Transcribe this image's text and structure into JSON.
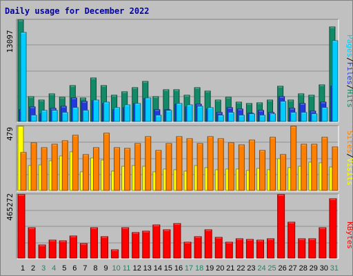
{
  "title": "Daily usage for December 2022",
  "colors": {
    "hits": "#138a67",
    "files": "#2339e0",
    "pages": "#00ccff",
    "visits": "#ffff00",
    "sites": "#ff8000",
    "kbytes": "#ff0000",
    "weekend_day_label": "#148a68",
    "weekday_label": "#000000"
  },
  "chart_data": [
    {
      "type": "bar",
      "panel": "hits-files-pages",
      "ymax_label": "13097",
      "ylim": [
        0,
        13097
      ],
      "grid": true,
      "right_labels": [
        "Pages",
        "Files",
        "Hits"
      ],
      "categories": [
        "1",
        "2",
        "3",
        "4",
        "5",
        "6",
        "7",
        "8",
        "9",
        "10",
        "11",
        "12",
        "13",
        "14",
        "15",
        "16",
        "17",
        "18",
        "19",
        "20",
        "21",
        "22",
        "23",
        "24",
        "25",
        "26",
        "27",
        "28",
        "29",
        "30",
        "31"
      ],
      "weekend_days": [
        "3",
        "4",
        "10",
        "11",
        "17",
        "18",
        "24",
        "25",
        "31"
      ],
      "series": [
        {
          "name": "Hits",
          "values": [
            13097,
            3200,
            2800,
            3600,
            3100,
            4600,
            3000,
            5600,
            4600,
            3400,
            3800,
            4400,
            5200,
            3200,
            4100,
            4100,
            3400,
            4400,
            3900,
            2800,
            3100,
            2500,
            2300,
            2400,
            2800,
            4500,
            2800,
            3600,
            3400,
            4700,
            12200
          ]
        },
        {
          "name": "Files",
          "values": [
            1500,
            1900,
            1000,
            1700,
            2000,
            3000,
            2600,
            2700,
            2300,
            1500,
            1800,
            2300,
            2900,
            1500,
            1500,
            2200,
            1900,
            2200,
            1600,
            1200,
            1800,
            1600,
            1100,
            1400,
            1200,
            3200,
            1700,
            2300,
            1300,
            2500,
            4500
          ]
        },
        {
          "name": "Pages",
          "values": [
            11500,
            800,
            1400,
            1400,
            1200,
            1800,
            1400,
            2800,
            2500,
            1800,
            2100,
            2300,
            3000,
            800,
            1400,
            2300,
            2100,
            2000,
            1800,
            800,
            1200,
            800,
            1000,
            800,
            1000,
            2600,
            1200,
            1200,
            1000,
            1800,
            10400
          ]
        }
      ]
    },
    {
      "type": "bar",
      "panel": "visits-sites",
      "ymax_label": "479",
      "ylim": [
        0,
        479
      ],
      "grid": true,
      "right_labels": [
        "Sites",
        "Visits"
      ],
      "categories": [
        "1",
        "2",
        "3",
        "4",
        "5",
        "6",
        "7",
        "8",
        "9",
        "10",
        "11",
        "12",
        "13",
        "14",
        "15",
        "16",
        "17",
        "18",
        "19",
        "20",
        "21",
        "22",
        "23",
        "24",
        "25",
        "26",
        "27",
        "28",
        "29",
        "30",
        "31"
      ],
      "series": [
        {
          "name": "Visits",
          "values": [
            479,
            185,
            192,
            222,
            260,
            288,
            137,
            242,
            225,
            144,
            180,
            187,
            181,
            141,
            158,
            155,
            142,
            187,
            171,
            154,
            159,
            159,
            149,
            165,
            157,
            237,
            171,
            180,
            212,
            208,
            174
          ]
        },
        {
          "name": "Sites",
          "values": [
            285,
            356,
            319,
            344,
            373,
            410,
            268,
            320,
            430,
            319,
            313,
            348,
            400,
            300,
            350,
            400,
            384,
            348,
            404,
            384,
            354,
            341,
            374,
            301,
            396,
            268,
            479,
            344,
            344,
            399,
            327
          ]
        }
      ]
    },
    {
      "type": "bar",
      "panel": "kbytes",
      "ymax_label": "465272",
      "ylim": [
        0,
        465272
      ],
      "grid": true,
      "right_labels": [
        "KBytes"
      ],
      "categories": [
        "1",
        "2",
        "3",
        "4",
        "5",
        "6",
        "7",
        "8",
        "9",
        "10",
        "11",
        "12",
        "13",
        "14",
        "15",
        "16",
        "17",
        "18",
        "19",
        "20",
        "21",
        "22",
        "23",
        "24",
        "25",
        "26",
        "27",
        "28",
        "29",
        "30",
        "31"
      ],
      "series": [
        {
          "name": "KBytes",
          "values": [
            465272,
            223000,
            96000,
            130000,
            125000,
            160000,
            105000,
            220000,
            155000,
            60000,
            220000,
            189000,
            199000,
            241000,
            207000,
            254000,
            117000,
            158000,
            208000,
            152000,
            118000,
            142000,
            137000,
            130000,
            143000,
            465000,
            262000,
            140000,
            143000,
            223000,
            435000
          ]
        }
      ]
    }
  ]
}
